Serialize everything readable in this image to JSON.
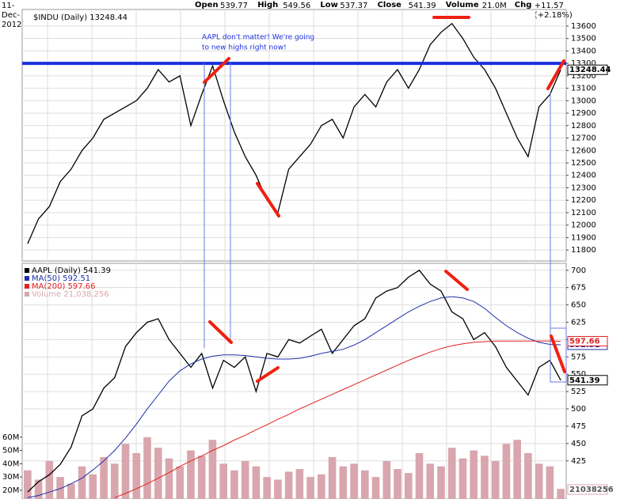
{
  "header": {
    "date": "11-Dec-2012",
    "items": [
      {
        "label": "Open",
        "value": "539.77"
      },
      {
        "label": "High",
        "value": "549.56"
      },
      {
        "label": "Low",
        "value": "537.37"
      },
      {
        "label": "Close",
        "value": "541.39"
      },
      {
        "label": "Volume",
        "value": "21.0M"
      },
      {
        "label": "Chg",
        "value": "+11.57 (+2.18%)"
      }
    ]
  },
  "chart_data": [
    {
      "type": "line",
      "title": "$INDU (Daily) 13248.44",
      "tag": "13248.44",
      "annotation": [
        "AAPL don't matter!  We're going",
        "to new highs right now!"
      ],
      "categories": [
        null,
        null,
        null,
        null,
        null,
        null,
        null,
        null,
        null,
        null,
        null,
        null,
        null,
        null,
        null,
        null,
        null,
        null,
        null,
        null,
        null,
        null,
        null,
        null,
        null,
        null,
        null,
        null,
        null,
        null,
        null,
        null,
        null,
        null,
        null,
        null,
        null,
        null,
        null,
        null,
        null,
        null,
        null,
        null,
        null,
        null,
        null,
        null,
        null,
        null
      ],
      "values": [
        11850,
        12050,
        12150,
        12350,
        12450,
        12600,
        12700,
        12850,
        12900,
        12950,
        13000,
        13100,
        13250,
        13150,
        13200,
        12800,
        13050,
        13280,
        13000,
        12750,
        12550,
        12400,
        12200,
        12100,
        12450,
        12550,
        12650,
        12800,
        12850,
        12700,
        12950,
        13050,
        12950,
        13150,
        13250,
        13100,
        13250,
        13450,
        13550,
        13620,
        13500,
        13350,
        13250,
        13100,
        12900,
        12700,
        12550,
        12950,
        13050,
        13248.44
      ],
      "color": "#000000",
      "hline": 13300,
      "hline_color": "#1a2fe0",
      "ylim": [
        11712,
        13733
      ],
      "yticks": [
        11800,
        11900,
        12000,
        12100,
        12200,
        12300,
        12400,
        12500,
        12600,
        12700,
        12800,
        12900,
        13000,
        13100,
        13200,
        13300,
        13400,
        13500,
        13600
      ],
      "grid": true
    },
    {
      "type": "line",
      "categories": [
        null,
        null,
        null,
        null,
        null,
        null,
        null,
        null,
        null,
        null,
        null,
        null,
        null,
        null,
        null,
        null,
        null,
        null,
        null,
        null,
        null,
        null,
        null,
        null,
        null,
        null,
        null,
        null,
        null,
        null,
        null,
        null,
        null,
        null,
        null,
        null,
        null,
        null,
        null,
        null,
        null,
        null,
        null,
        null,
        null,
        null,
        null,
        null,
        null,
        null
      ],
      "series": [
        {
          "name": "AAPL (Daily) 541.39",
          "tag": "541.39",
          "color": "#000000",
          "values": [
            380,
            395,
            405,
            420,
            445,
            490,
            500,
            530,
            545,
            590,
            610,
            625,
            630,
            600,
            580,
            560,
            580,
            530,
            570,
            560,
            575,
            525,
            580,
            575,
            600,
            595,
            605,
            615,
            580,
            600,
            620,
            630,
            660,
            670,
            675,
            690,
            700,
            680,
            670,
            640,
            630,
            600,
            610,
            590,
            560,
            540,
            520,
            560,
            570,
            541.39
          ]
        },
        {
          "name": "MA(50) 592.51",
          "tag": "592.51",
          "color": "#1f2fa8",
          "values": [
            372,
            375,
            380,
            385,
            392,
            400,
            412,
            425,
            440,
            458,
            478,
            500,
            520,
            540,
            555,
            565,
            572,
            576,
            578,
            578,
            577,
            575,
            573,
            572,
            572,
            573,
            576,
            580,
            583,
            586,
            592,
            600,
            610,
            620,
            630,
            640,
            648,
            655,
            660,
            662,
            660,
            655,
            645,
            632,
            620,
            610,
            602,
            596,
            593,
            592.51
          ]
        },
        {
          "name": "MA(200) 597.66",
          "tag": "597.66",
          "color": "#e02020",
          "values": [
            null,
            null,
            null,
            null,
            null,
            null,
            null,
            null,
            372,
            378,
            385,
            392,
            400,
            408,
            417,
            425,
            432,
            440,
            447,
            455,
            462,
            470,
            477,
            485,
            492,
            500,
            507,
            514,
            521,
            528,
            535,
            542,
            549,
            556,
            563,
            570,
            576,
            582,
            587,
            591,
            594,
            596,
            597,
            598,
            598,
            598,
            598,
            598,
            598,
            597.66
          ]
        },
        {
          "name": "Volume 21,038,256",
          "tag": "21038256",
          "type": "bar",
          "axis": "y2",
          "color": "#d9a6ae",
          "values": [
            35,
            28,
            42,
            30,
            25,
            38,
            32,
            45,
            40,
            55,
            48,
            60,
            52,
            44,
            38,
            50,
            46,
            58,
            40,
            35,
            42,
            38,
            30,
            28,
            34,
            36,
            30,
            32,
            45,
            38,
            40,
            35,
            30,
            42,
            36,
            33,
            48,
            40,
            38,
            52,
            44,
            50,
            46,
            42,
            55,
            58,
            48,
            40,
            38,
            21.04
          ]
        }
      ],
      "ylim": [
        370,
        710
      ],
      "yticks": [
        425,
        450,
        475,
        500,
        525,
        550,
        575,
        600,
        625,
        650,
        675,
        700
      ],
      "y2lim": [
        13.4,
        191
      ],
      "y2ticks": [
        {
          "value": 20,
          "label": "20M"
        },
        {
          "value": 30,
          "label": "30M"
        },
        {
          "value": 40,
          "label": "40M"
        },
        {
          "value": 50,
          "label": "50M"
        },
        {
          "value": 60,
          "label": "60M"
        }
      ],
      "grid": true
    }
  ]
}
